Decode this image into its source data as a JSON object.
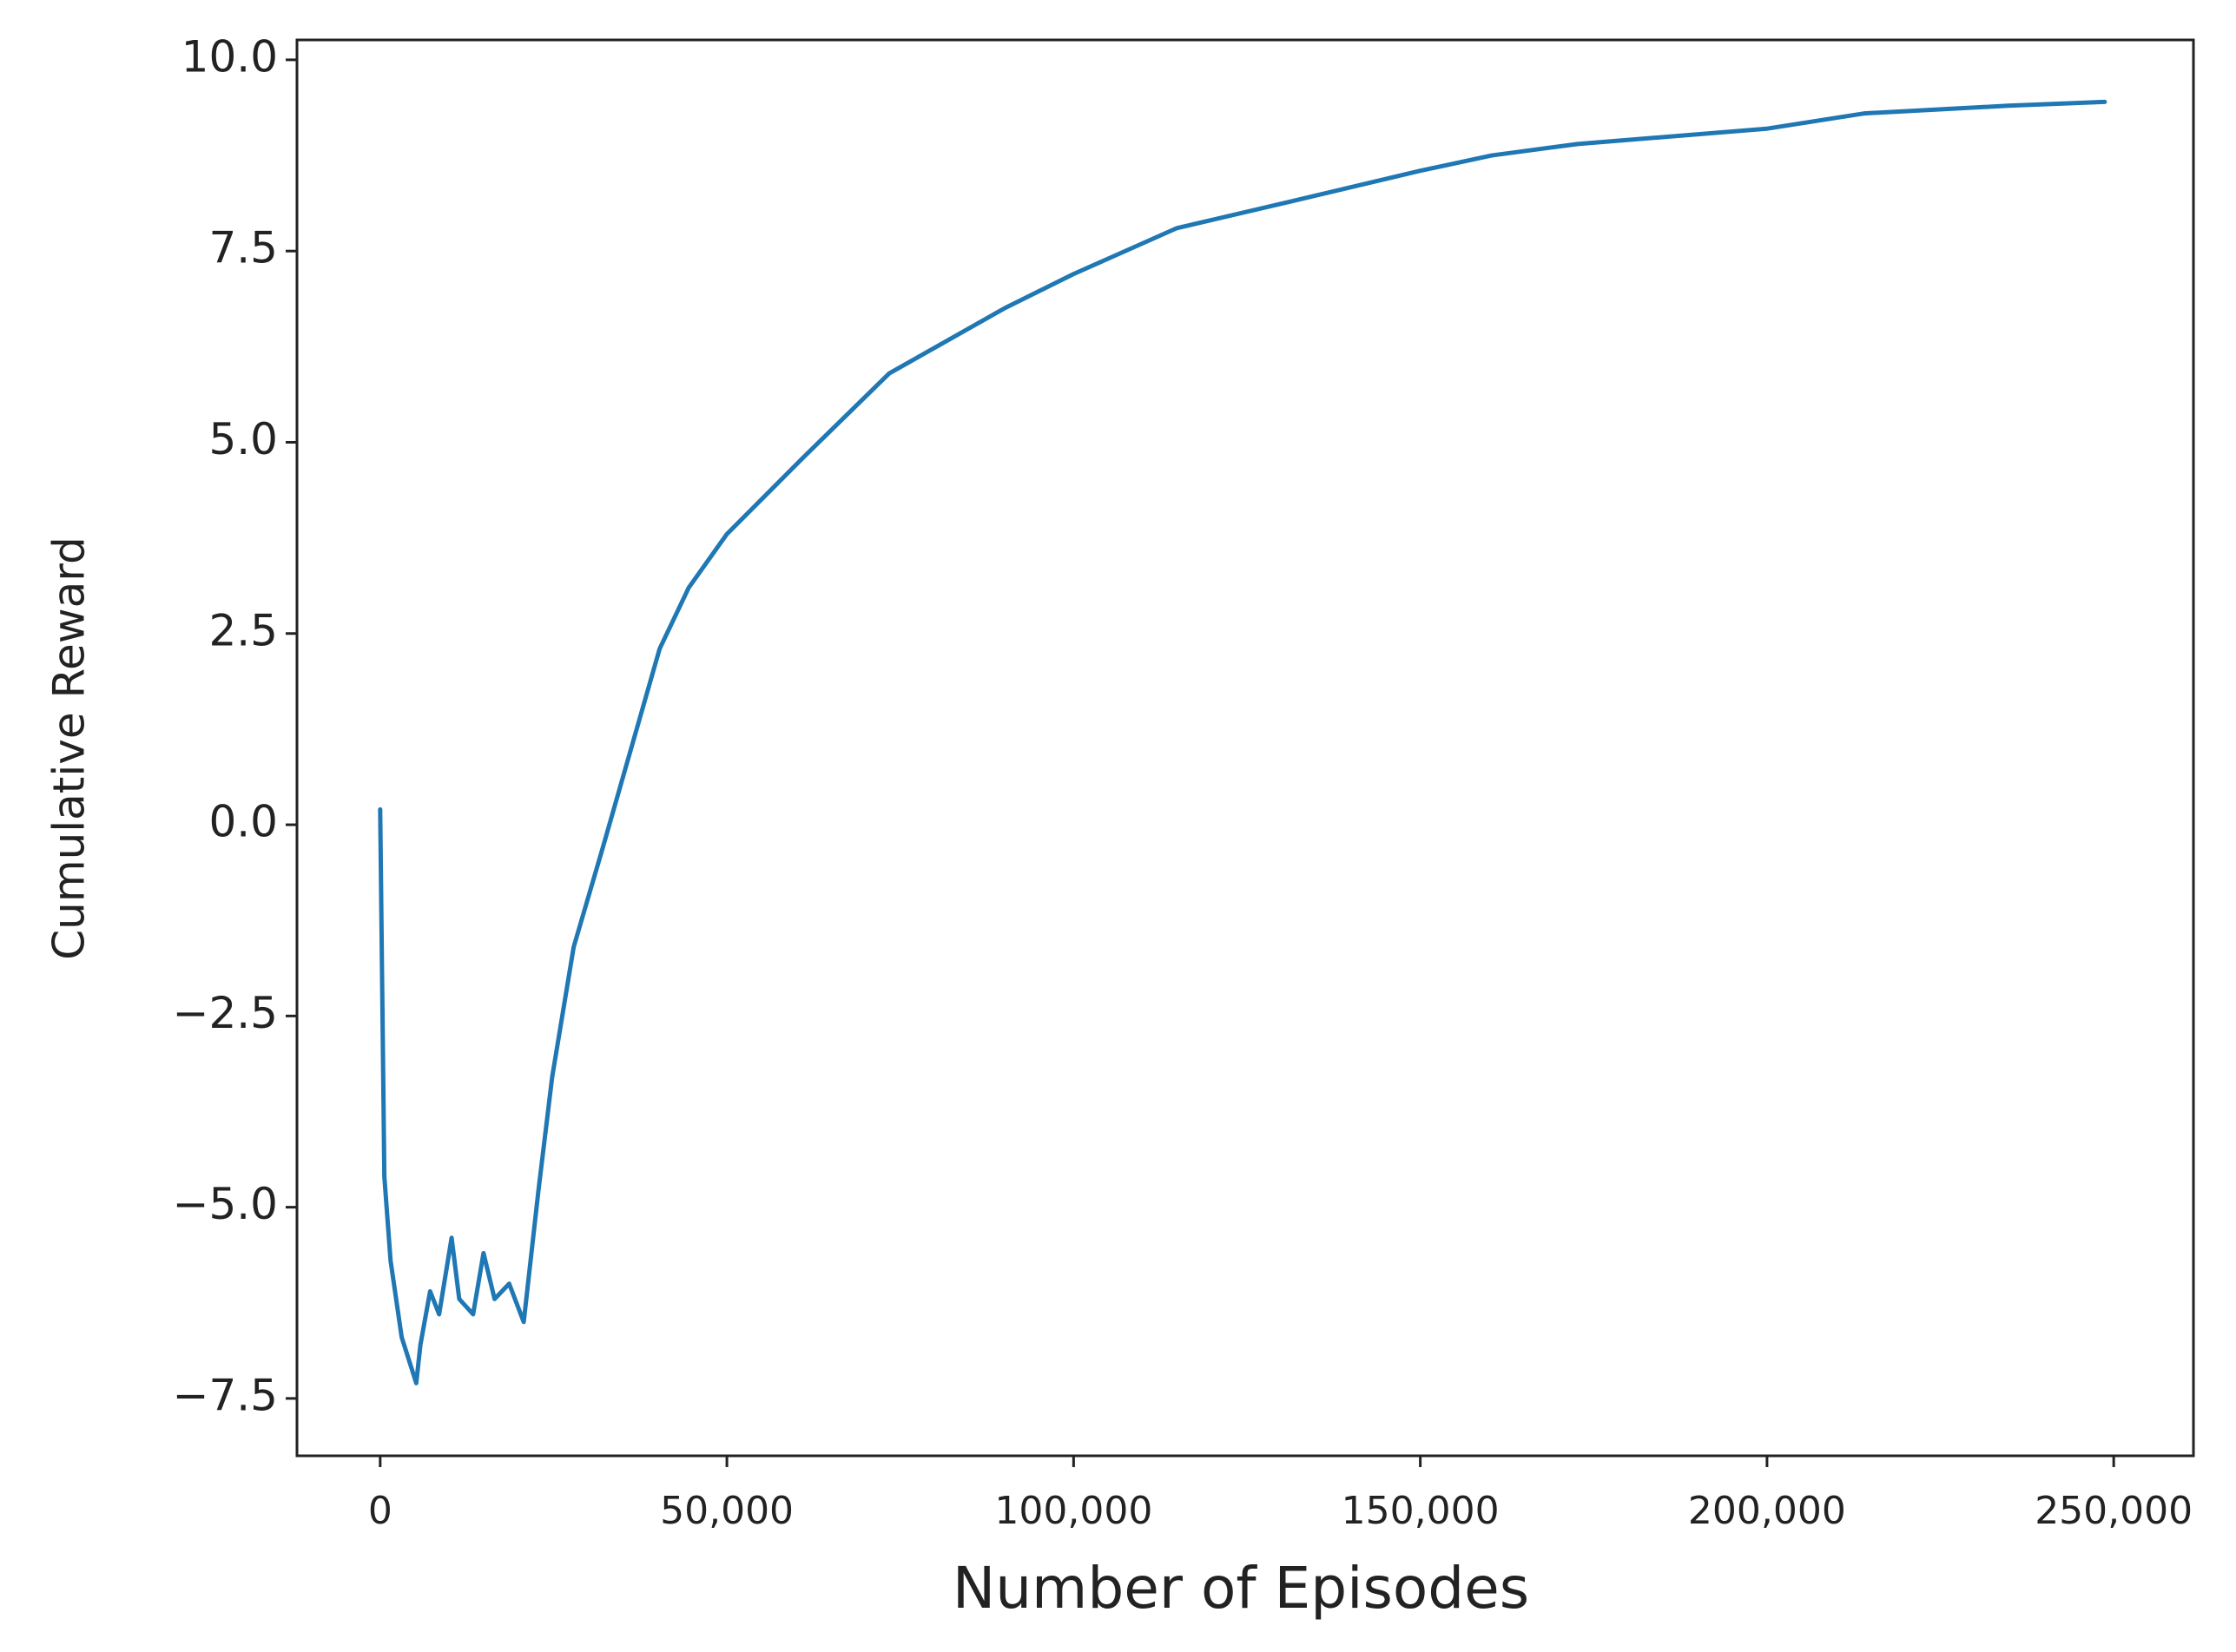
{
  "chart_data": {
    "type": "line",
    "x_label": "Number of Episodes",
    "y_label": "Cumulative Reward",
    "x": [
      0,
      200,
      600,
      1500,
      3100,
      5200,
      5800,
      7200,
      8500,
      10300,
      11400,
      13400,
      14900,
      16500,
      18600,
      20700,
      22800,
      24800,
      27900,
      32100,
      36200,
      40300,
      44500,
      50000,
      61000,
      73400,
      90000,
      100000,
      114900,
      131400,
      150000,
      160300,
      172700,
      200000,
      214100,
      234800,
      248700
    ],
    "series": [
      {
        "color": "#1f77b4",
        "values": [
          0.2,
          -1.4,
          -4.6,
          -5.7,
          -6.7,
          -7.3,
          -6.8,
          -6.1,
          -6.4,
          -5.4,
          -6.2,
          -6.4,
          -5.6,
          -6.2,
          -6.0,
          -6.5,
          -4.8,
          -3.3,
          -1.6,
          -0.3,
          1.0,
          2.3,
          3.1,
          3.8,
          4.8,
          5.9,
          6.75,
          7.2,
          7.8,
          8.15,
          8.55,
          8.75,
          8.9,
          9.1,
          9.3,
          9.4,
          9.45
        ]
      }
    ],
    "xlim": [
      -12000,
      261500
    ],
    "ylim": [
      -8.25,
      10.26
    ],
    "xticks": [
      0,
      {
        "value": 50000,
        "label": "50,000"
      },
      {
        "value": 100000,
        "label": "100,000"
      },
      {
        "value": 150000,
        "label": "150,000"
      },
      {
        "value": 200000,
        "label": "200,000"
      },
      {
        "value": 250000,
        "label": "250,000"
      }
    ],
    "yticks": [
      {
        "value": -7.5,
        "label": "−7.5"
      },
      {
        "value": -5,
        "label": "−5.0"
      },
      {
        "value": -2.5,
        "label": "−2.5"
      },
      {
        "value": 0,
        "label": "0.0"
      },
      2.5,
      {
        "value": 5,
        "label": "5.0"
      },
      7.5,
      {
        "value": 10,
        "label": "10.0"
      }
    ],
    "grid": false
  }
}
